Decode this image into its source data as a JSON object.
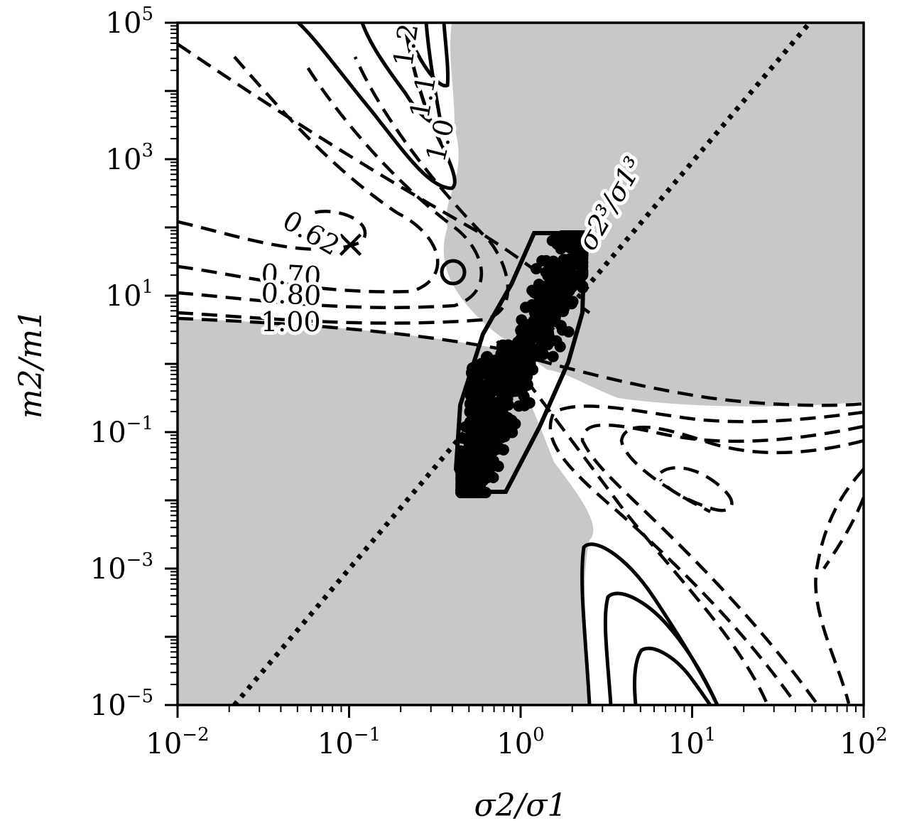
{
  "chart_data": {
    "type": "contour",
    "xlabel": "σ2/σ1",
    "ylabel": "m2/m1",
    "x_scale": "log",
    "y_scale": "log",
    "xlim": [
      0.01,
      100
    ],
    "ylim": [
      1e-05,
      100000
    ],
    "x_ticks": [
      {
        "base": "10",
        "exp": "−2"
      },
      {
        "base": "10",
        "exp": "−1"
      },
      {
        "base": "10",
        "exp": "0"
      },
      {
        "base": "10",
        "exp": "1"
      },
      {
        "base": "10",
        "exp": "2"
      }
    ],
    "y_ticks": [
      {
        "base": "10",
        "exp": "−5"
      },
      {
        "base": "10",
        "exp": "−3"
      },
      {
        "base": "10",
        "exp": "−1"
      },
      {
        "base": "10",
        "exp": "1"
      },
      {
        "base": "10",
        "exp": "3"
      },
      {
        "base": "10",
        "exp": "5"
      }
    ],
    "dashed_contour_labels": [
      "0.62",
      "0.70",
      "0.80",
      "1.00"
    ],
    "solid_contour_labels": [
      "1.0",
      "1.1",
      "1.2"
    ],
    "diagonal_line_label": "σ2³/σ1³",
    "markers": [
      {
        "symbol": "×",
        "x": 0.11,
        "y": 60
      },
      {
        "symbol": "○",
        "x": 0.4,
        "y": 20
      }
    ],
    "shaded_regions_color": "#c8c8c8",
    "point_cluster": {
      "x_range": [
        0.45,
        2.3
      ],
      "y_range": [
        0.013,
        75
      ]
    }
  }
}
